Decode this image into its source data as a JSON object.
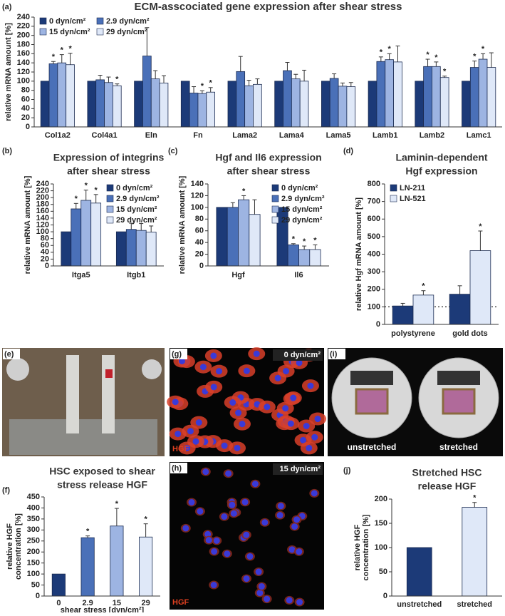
{
  "chart_data": [
    {
      "panel": "(a)",
      "type": "bar",
      "title": [
        "ECM-asscociated gene expression after shear stress"
      ],
      "ylabel": [
        "relative mRNA amount [%]"
      ],
      "categories": [
        "Col1a2",
        "Col4a1",
        "Eln",
        "Fn",
        "Lama2",
        "Lama4",
        "Lama5",
        "Lamb1",
        "Lamb2",
        "Lamc1"
      ],
      "series": [
        {
          "name": "0 dyn/cm²",
          "color": "#1c3a78",
          "values": [
            100,
            100,
            100,
            100,
            100,
            100,
            100,
            100,
            100,
            100
          ],
          "errors": [
            0,
            0,
            0,
            0,
            0,
            0,
            0,
            0,
            0,
            0
          ]
        },
        {
          "name": "2.9 dyn/cm²",
          "color": "#4a70b8",
          "values": [
            138,
            103,
            155,
            74,
            121,
            123,
            106,
            143,
            132,
            130
          ],
          "errors": [
            5,
            10,
            62,
            14,
            33,
            18,
            10,
            10,
            16,
            14
          ]
        },
        {
          "name": "15 dyn/cm²",
          "color": "#9db4e2",
          "values": [
            140,
            97,
            105,
            73,
            90,
            105,
            89,
            147,
            132,
            148
          ],
          "errors": [
            18,
            12,
            18,
            6,
            12,
            10,
            7,
            13,
            10,
            12
          ]
        },
        {
          "name": "29 dyn/cm²",
          "color": "#dfe8f8",
          "values": [
            136,
            90,
            96,
            76,
            93,
            100,
            88,
            142,
            108,
            130
          ],
          "errors": [
            25,
            4,
            16,
            10,
            12,
            24,
            9,
            35,
            3,
            32
          ]
        }
      ],
      "ylim": [
        0,
        240
      ],
      "yticks": [
        0,
        20,
        40,
        60,
        80,
        100,
        120,
        140,
        160,
        180,
        200,
        220,
        240
      ],
      "legend": {
        "position": "upper left",
        "columns": 2
      },
      "annotations": [
        {
          "text": "*",
          "series": 1,
          "category": 0
        },
        {
          "text": "*",
          "series": 2,
          "category": 0
        },
        {
          "text": "*",
          "series": 3,
          "category": 0
        },
        {
          "text": "*",
          "series": 3,
          "category": 1
        },
        {
          "text": "*",
          "series": 2,
          "category": 3
        },
        {
          "text": "*",
          "series": 3,
          "category": 3
        },
        {
          "text": "*",
          "series": 1,
          "category": 7
        },
        {
          "text": "*",
          "series": 2,
          "category": 7
        },
        {
          "text": "*",
          "series": 1,
          "category": 8
        },
        {
          "text": "*",
          "series": 2,
          "category": 8
        },
        {
          "text": "*",
          "series": 3,
          "category": 8
        },
        {
          "text": "*",
          "series": 1,
          "category": 9
        },
        {
          "text": "*",
          "series": 2,
          "category": 9
        }
      ]
    },
    {
      "panel": "(b)",
      "type": "bar",
      "title": [
        "Expression of integrins",
        "after shear stress"
      ],
      "ylabel": [
        "relative mRNA amount [%]"
      ],
      "categories": [
        "Itga5",
        "Itgb1"
      ],
      "series": [
        {
          "name": "0 dyn/cm²",
          "color": "#1c3a78",
          "values": [
            100,
            100
          ],
          "errors": [
            0,
            0
          ]
        },
        {
          "name": "2.9 dyn/cm²",
          "color": "#4a70b8",
          "values": [
            167,
            107
          ],
          "errors": [
            16,
            18
          ]
        },
        {
          "name": "15 dyn/cm²",
          "color": "#9db4e2",
          "values": [
            192,
            104
          ],
          "errors": [
            30,
            20
          ]
        },
        {
          "name": "29 dyn/cm²",
          "color": "#dfe8f8",
          "values": [
            184,
            99
          ],
          "errors": [
            25,
            18
          ]
        }
      ],
      "ylim": [
        0,
        240
      ],
      "yticks": [
        0,
        20,
        40,
        60,
        80,
        100,
        120,
        140,
        160,
        180,
        200,
        220,
        240
      ],
      "legend": {
        "position": "upper right",
        "columns": 1
      },
      "annotations": [
        {
          "text": "*",
          "series": 1,
          "category": 0
        },
        {
          "text": "*",
          "series": 2,
          "category": 0
        },
        {
          "text": "*",
          "series": 3,
          "category": 0
        }
      ]
    },
    {
      "panel": "(c)",
      "type": "bar",
      "title": [
        "Hgf and Il6 expression",
        "after shear stress"
      ],
      "ylabel": [
        "relative mRNA amount [%]"
      ],
      "categories": [
        "Hgf",
        "Il6"
      ],
      "series": [
        {
          "name": "0 dyn/cm²",
          "color": "#1c3a78",
          "values": [
            100,
            100
          ],
          "errors": [
            0,
            0
          ]
        },
        {
          "name": "2.9 dyn/cm²",
          "color": "#4a70b8",
          "values": [
            100,
            36
          ],
          "errors": [
            8,
            2
          ]
        },
        {
          "name": "15 dyn/cm²",
          "color": "#9db4e2",
          "values": [
            113,
            28
          ],
          "errors": [
            7,
            6
          ]
        },
        {
          "name": "29 dyn/cm²",
          "color": "#dfe8f8",
          "values": [
            88,
            28
          ],
          "errors": [
            25,
            8
          ]
        }
      ],
      "ylim": [
        0,
        140
      ],
      "yticks": [
        0,
        20,
        40,
        60,
        80,
        100,
        120,
        140
      ],
      "legend": {
        "position": "upper right",
        "columns": 1
      },
      "annotations": [
        {
          "text": "*",
          "series": 2,
          "category": 0
        },
        {
          "text": "*",
          "series": 1,
          "category": 1
        },
        {
          "text": "*",
          "series": 2,
          "category": 1
        },
        {
          "text": "*",
          "series": 3,
          "category": 1
        }
      ]
    },
    {
      "panel": "(d)",
      "type": "bar",
      "title": [
        "Laminin-dependent",
        "Hgf expression"
      ],
      "ylabel": [
        "relative Hgf mRNA amount [%]"
      ],
      "categories": [
        "polystyrene",
        "gold dots"
      ],
      "series": [
        {
          "name": "LN-211",
          "color": "#1c3a78",
          "values": [
            105,
            172
          ],
          "errors": [
            15,
            48
          ]
        },
        {
          "name": "LN-521",
          "color": "#dfe8f8",
          "values": [
            167,
            420
          ],
          "errors": [
            25,
            112
          ]
        }
      ],
      "ylim": [
        0,
        800
      ],
      "yticks": [
        0,
        100,
        200,
        300,
        400,
        500,
        600,
        700,
        800
      ],
      "refline": 100,
      "legend": {
        "position": "upper left",
        "columns": 1
      },
      "annotations": [
        {
          "text": "*",
          "series": 1,
          "category": 0
        },
        {
          "text": "*",
          "series": 1,
          "category": 1
        }
      ]
    },
    {
      "panel": "(f)",
      "type": "bar",
      "title": [
        "HSC exposed to shear",
        "stress release HGF"
      ],
      "ylabel": [
        "relative HGF",
        "concentration [%]"
      ],
      "xlabel": "shear stress [dyn/cm²]",
      "categories": [
        "0",
        "2.9",
        "15",
        "29"
      ],
      "series": [
        {
          "colors": [
            "#1c3a78",
            "#4a70b8",
            "#9db4e2",
            "#dfe8f8"
          ],
          "values": [
            100,
            265,
            318,
            268
          ],
          "errors": [
            0,
            8,
            80,
            60
          ]
        }
      ],
      "ylim": [
        0,
        450
      ],
      "yticks": [
        0,
        50,
        100,
        150,
        200,
        250,
        300,
        350,
        400,
        450
      ],
      "annotations": [
        {
          "text": "*",
          "series": 0,
          "category": 1
        },
        {
          "text": "*",
          "series": 0,
          "category": 2
        },
        {
          "text": "*",
          "series": 0,
          "category": 3
        }
      ]
    },
    {
      "panel": "(j)",
      "type": "bar",
      "title": [
        "Stretched HSC",
        "release HGF"
      ],
      "ylabel": [
        "relative HGF",
        "concentration [%]"
      ],
      "categories": [
        "unstretched",
        "stretched"
      ],
      "series": [
        {
          "colors": [
            "#1c3a78",
            "#dfe8f8"
          ],
          "values": [
            100,
            183
          ],
          "errors": [
            0,
            10
          ]
        }
      ],
      "ylim": [
        0,
        200
      ],
      "yticks": [
        0,
        50,
        100,
        150,
        200
      ],
      "annotations": [
        {
          "text": "*",
          "series": 0,
          "category": 1
        }
      ]
    }
  ],
  "panels": [
    {
      "label": "(e)"
    },
    {
      "label": "(g)",
      "texts": [
        "0 dyn/cm²",
        "HGF"
      ]
    },
    {
      "label": "(h)",
      "texts": [
        "15 dyn/cm²",
        "HGF"
      ]
    },
    {
      "label": "(i)",
      "texts": [
        "unstretched",
        "stretched"
      ]
    }
  ]
}
